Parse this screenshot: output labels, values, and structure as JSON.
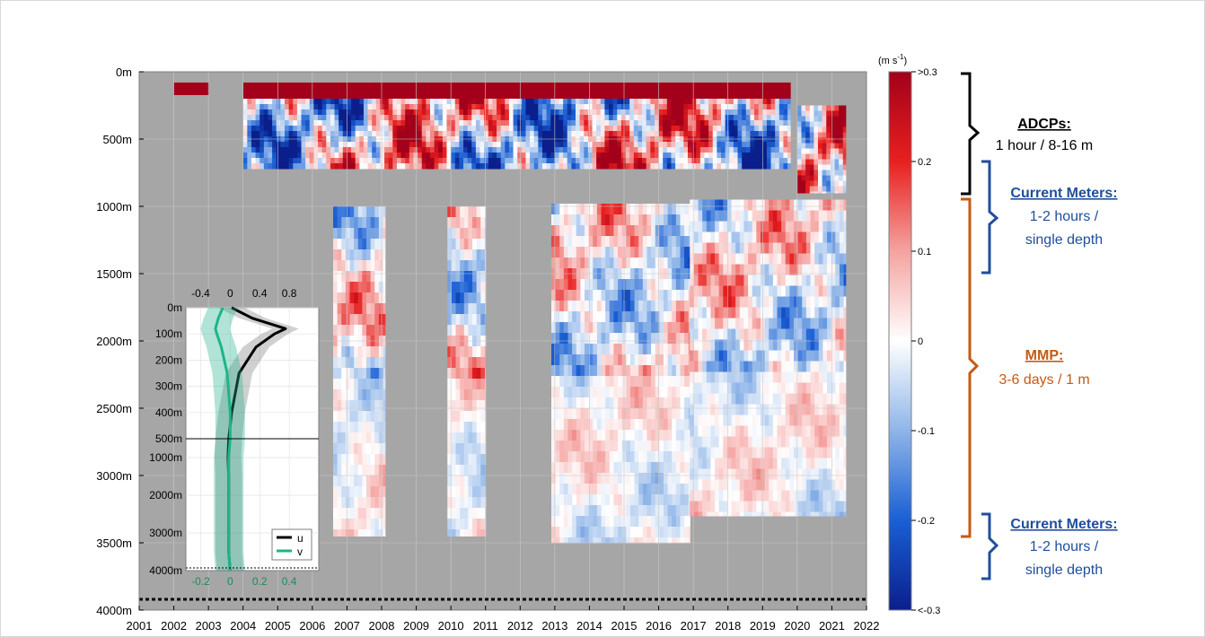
{
  "chart_data": [
    {
      "type": "heatmap",
      "description_variable": "velocity",
      "x_ticks": [
        "2001",
        "2002",
        "2003",
        "2004",
        "2005",
        "2006",
        "2007",
        "2008",
        "2009",
        "2010",
        "2011",
        "2012",
        "2013",
        "2014",
        "2015",
        "2016",
        "2017",
        "2018",
        "2019",
        "2020",
        "2021",
        "2022"
      ],
      "y_ticks": [
        "0m",
        "500m",
        "1000m",
        "1500m",
        "2000m",
        "2500m",
        "3000m",
        "3500m",
        "4000m"
      ],
      "xlim": [
        2001,
        2022
      ],
      "ylim": [
        0,
        4000
      ],
      "y_inverted": true,
      "grid": true,
      "bottom_reference_depth": 3920,
      "missing_data_color": "#a6a6a6",
      "colorbar": {
        "units_label": "(m s",
        "units_exponent": "-1",
        "units_close": ")",
        "range": [
          -0.3,
          0.3
        ],
        "tick_labels": [
          ">0.3",
          "0.2",
          "0.1",
          "0",
          "-0.1",
          "-0.2",
          "<-0.3"
        ],
        "tick_values": [
          0.3,
          0.2,
          0.1,
          0,
          -0.1,
          -0.2,
          -0.3
        ],
        "colors": [
          "#a3001b",
          "#e8201f",
          "#f4a3a0",
          "#ffffff",
          "#8fb5e8",
          "#1a5fd4",
          "#0a1f8c"
        ]
      },
      "coverage_blocks": [
        {
          "instrument": "ADCP",
          "x": [
            2002.0,
            2003.0
          ],
          "depth": [
            80,
            170
          ]
        },
        {
          "instrument": "ADCP",
          "x": [
            2004.0,
            2019.8
          ],
          "depth": [
            80,
            720
          ]
        },
        {
          "instrument": "ADCP",
          "x": [
            2020.0,
            2021.4
          ],
          "depth": [
            250,
            900
          ]
        },
        {
          "instrument": "MMP",
          "x": [
            2006.6,
            2008.1
          ],
          "depth": [
            1000,
            3450
          ]
        },
        {
          "instrument": "MMP",
          "x": [
            2009.9,
            2011.0
          ],
          "depth": [
            1000,
            3450
          ]
        },
        {
          "instrument": "MMP",
          "x": [
            2012.9,
            2016.9
          ],
          "depth": [
            980,
            3500
          ]
        },
        {
          "instrument": "MMP",
          "x": [
            2016.9,
            2021.4
          ],
          "depth": [
            950,
            3300
          ]
        }
      ]
    },
    {
      "type": "line",
      "series": [
        {
          "name": "u",
          "color": "#000000",
          "depth": [
            0,
            40,
            80,
            100,
            150,
            250,
            400,
            500,
            1000,
            1500,
            2000,
            2500,
            3000,
            3500,
            4000
          ],
          "values": [
            0.02,
            0.3,
            0.75,
            0.6,
            0.35,
            0.12,
            0.02,
            -0.02,
            -0.03,
            -0.02,
            -0.02,
            -0.02,
            -0.02,
            -0.02,
            0.0
          ]
        },
        {
          "name": "v",
          "color": "#1fb38a",
          "depth": [
            0,
            40,
            80,
            100,
            150,
            250,
            400,
            500,
            1000,
            1500,
            2000,
            2500,
            3000,
            3500,
            4000
          ],
          "values": [
            -0.05,
            -0.08,
            -0.1,
            -0.09,
            -0.06,
            -0.02,
            0.0,
            0.0,
            -0.01,
            -0.01,
            -0.01,
            -0.01,
            -0.01,
            -0.01,
            0.0
          ]
        }
      ],
      "top_x_ticks": [
        "-0.4",
        "0",
        "0.4",
        "0.8"
      ],
      "bottom_x_ticks": [
        "-0.2",
        "0",
        "0.2",
        "0.4"
      ],
      "y_ticks_upper": [
        "0m",
        "100m",
        "200m",
        "300m",
        "400m",
        "500m"
      ],
      "y_ticks_lower": [
        "1000m",
        "2000m",
        "3000m",
        "4000m"
      ],
      "legend": [
        "u",
        "v"
      ],
      "legend_placement": "bottom-right"
    }
  ],
  "annotations": [
    {
      "title": "ADCPs:",
      "text": "1 hour / 8-16 m",
      "color": "#000000",
      "bracket_color": "#000000"
    },
    {
      "title": "Current Meters:",
      "text": "1-2 hours /",
      "text2": "single depth",
      "color": "#1f4e9c",
      "bracket_color": "#1f4e9c"
    },
    {
      "title": "MMP:",
      "text": "3-6 days / 1 m",
      "color": "#c55a11",
      "bracket_color": "#c55a11"
    },
    {
      "title": "Current Meters:",
      "text": "1-2 hours /",
      "text2": "single depth",
      "color": "#1f4e9c",
      "bracket_color": "#1f4e9c"
    }
  ]
}
